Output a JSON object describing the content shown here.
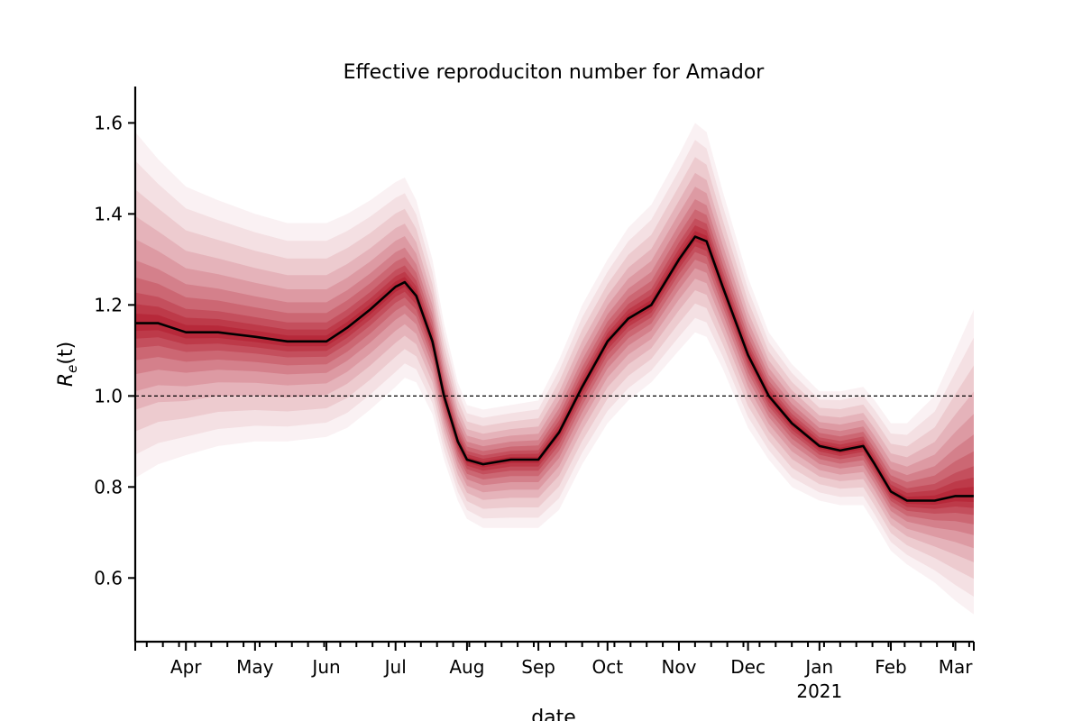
{
  "chart_data": {
    "type": "line",
    "title": "Effective reproduciton number for Amador",
    "xlabel": "date",
    "ylabel": "R_e(t)",
    "ylim": [
      0.46,
      1.68
    ],
    "xlim": [
      "2020-03-10",
      "2021-03-09"
    ],
    "yticks": [
      0.6,
      0.8,
      1.0,
      1.2,
      1.4,
      1.6
    ],
    "ytick_labels": [
      "0.6",
      "0.8",
      "1.0",
      "1.2",
      "1.4",
      "1.6"
    ],
    "xticks": [
      {
        "date": "2020-04-01",
        "label": "Apr"
      },
      {
        "date": "2020-05-01",
        "label": "May"
      },
      {
        "date": "2020-06-01",
        "label": "Jun"
      },
      {
        "date": "2020-07-01",
        "label": "Jul"
      },
      {
        "date": "2020-08-01",
        "label": "Aug"
      },
      {
        "date": "2020-09-01",
        "label": "Sep"
      },
      {
        "date": "2020-10-01",
        "label": "Oct"
      },
      {
        "date": "2020-11-01",
        "label": "Nov"
      },
      {
        "date": "2020-12-01",
        "label": "Dec"
      },
      {
        "date": "2021-01-01",
        "label": "Jan",
        "sublabel": "2021"
      },
      {
        "date": "2021-02-01",
        "label": "Feb"
      },
      {
        "date": "2021-03-01",
        "label": "Mar"
      }
    ],
    "reference_line": {
      "y": 1.0,
      "style": "dashed"
    },
    "series": [
      {
        "style": "median line",
        "color": "#000000",
        "points": [
          {
            "x": "2020-03-10",
            "y": 1.16,
            "lo": 0.82,
            "hi": 1.58
          },
          {
            "x": "2020-03-20",
            "y": 1.16,
            "lo": 0.85,
            "hi": 1.52
          },
          {
            "x": "2020-04-01",
            "y": 1.14,
            "lo": 0.87,
            "hi": 1.46
          },
          {
            "x": "2020-04-15",
            "y": 1.14,
            "lo": 0.89,
            "hi": 1.43
          },
          {
            "x": "2020-05-01",
            "y": 1.13,
            "lo": 0.9,
            "hi": 1.4
          },
          {
            "x": "2020-05-15",
            "y": 1.12,
            "lo": 0.9,
            "hi": 1.38
          },
          {
            "x": "2020-06-01",
            "y": 1.12,
            "lo": 0.91,
            "hi": 1.38
          },
          {
            "x": "2020-06-10",
            "y": 1.15,
            "lo": 0.93,
            "hi": 1.4
          },
          {
            "x": "2020-06-20",
            "y": 1.19,
            "lo": 0.97,
            "hi": 1.43
          },
          {
            "x": "2020-07-01",
            "y": 1.24,
            "lo": 1.02,
            "hi": 1.47
          },
          {
            "x": "2020-07-05",
            "y": 1.25,
            "lo": 1.04,
            "hi": 1.48
          },
          {
            "x": "2020-07-10",
            "y": 1.22,
            "lo": 1.03,
            "hi": 1.43
          },
          {
            "x": "2020-07-17",
            "y": 1.12,
            "lo": 0.96,
            "hi": 1.3
          },
          {
            "x": "2020-07-22",
            "y": 1.0,
            "lo": 0.86,
            "hi": 1.16
          },
          {
            "x": "2020-07-28",
            "y": 0.9,
            "lo": 0.77,
            "hi": 1.03
          },
          {
            "x": "2020-08-01",
            "y": 0.86,
            "lo": 0.73,
            "hi": 0.98
          },
          {
            "x": "2020-08-08",
            "y": 0.85,
            "lo": 0.71,
            "hi": 0.97
          },
          {
            "x": "2020-08-20",
            "y": 0.86,
            "lo": 0.71,
            "hi": 0.98
          },
          {
            "x": "2020-09-01",
            "y": 0.86,
            "lo": 0.71,
            "hi": 0.99
          },
          {
            "x": "2020-09-10",
            "y": 0.92,
            "lo": 0.75,
            "hi": 1.08
          },
          {
            "x": "2020-09-20",
            "y": 1.02,
            "lo": 0.85,
            "hi": 1.2
          },
          {
            "x": "2020-10-01",
            "y": 1.12,
            "lo": 0.94,
            "hi": 1.3
          },
          {
            "x": "2020-10-10",
            "y": 1.17,
            "lo": 0.99,
            "hi": 1.37
          },
          {
            "x": "2020-10-20",
            "y": 1.2,
            "lo": 1.03,
            "hi": 1.42
          },
          {
            "x": "2020-11-01",
            "y": 1.3,
            "lo": 1.1,
            "hi": 1.53
          },
          {
            "x": "2020-11-08",
            "y": 1.35,
            "lo": 1.14,
            "hi": 1.6
          },
          {
            "x": "2020-11-13",
            "y": 1.34,
            "lo": 1.13,
            "hi": 1.58
          },
          {
            "x": "2020-11-20",
            "y": 1.24,
            "lo": 1.06,
            "hi": 1.45
          },
          {
            "x": "2020-12-01",
            "y": 1.09,
            "lo": 0.93,
            "hi": 1.26
          },
          {
            "x": "2020-12-10",
            "y": 1.0,
            "lo": 0.86,
            "hi": 1.14
          },
          {
            "x": "2020-12-20",
            "y": 0.94,
            "lo": 0.8,
            "hi": 1.07
          },
          {
            "x": "2021-01-01",
            "y": 0.89,
            "lo": 0.77,
            "hi": 1.01
          },
          {
            "x": "2021-01-10",
            "y": 0.88,
            "lo": 0.76,
            "hi": 1.01
          },
          {
            "x": "2021-01-20",
            "y": 0.89,
            "lo": 0.76,
            "hi": 1.02
          },
          {
            "x": "2021-01-25",
            "y": 0.85,
            "lo": 0.72,
            "hi": 0.99
          },
          {
            "x": "2021-02-01",
            "y": 0.79,
            "lo": 0.66,
            "hi": 0.94
          },
          {
            "x": "2021-02-08",
            "y": 0.77,
            "lo": 0.63,
            "hi": 0.94
          },
          {
            "x": "2021-02-20",
            "y": 0.77,
            "lo": 0.59,
            "hi": 1.0
          },
          {
            "x": "2021-03-01",
            "y": 0.78,
            "lo": 0.55,
            "hi": 1.1
          },
          {
            "x": "2021-03-09",
            "y": 0.78,
            "lo": 0.52,
            "hi": 1.19
          }
        ]
      }
    ],
    "band_color": "#b2182b"
  }
}
